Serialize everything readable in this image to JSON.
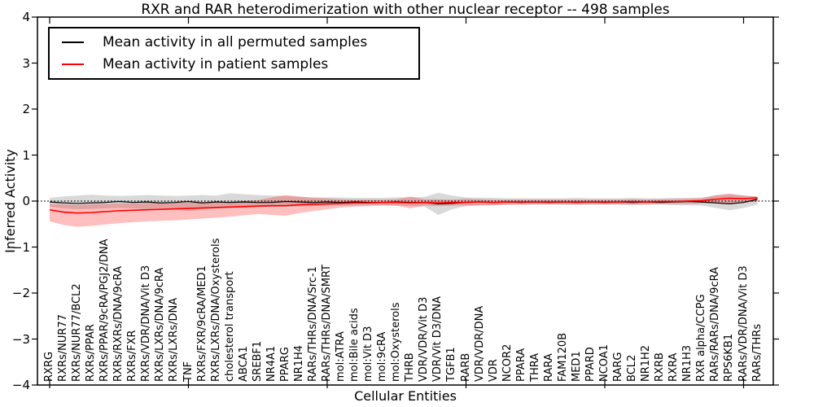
{
  "chart_data": {
    "type": "line",
    "title": "RXR and RAR heterodimerization with other nuclear receptor -- 498 samples",
    "xlabel": "Cellular Entities",
    "ylabel": "Inferred Activity",
    "ylim": [
      -4,
      4
    ],
    "grid": false,
    "legend_position": "upper left",
    "zero_line": {
      "style": "dotted",
      "color": "#000000"
    },
    "yticks": [
      {
        "value": 4,
        "label": "4"
      },
      {
        "value": 3,
        "label": "3"
      },
      {
        "value": 2,
        "label": "2"
      },
      {
        "value": 1,
        "label": "1"
      },
      {
        "value": 0,
        "label": "0"
      },
      {
        "value": -1,
        "label": "−1"
      },
      {
        "value": -2,
        "label": "−2"
      },
      {
        "value": -3,
        "label": "−3"
      },
      {
        "value": -4,
        "label": "−4"
      }
    ],
    "x_major_ticks": [
      0,
      10,
      20,
      30,
      40,
      50
    ],
    "categories": [
      "RXRG",
      "RXRs/NUR77",
      "RXRs/NUR77/BCL2",
      "RXRs/PPAR",
      "RXRs/PPAR/9cRA/PGJ2/DNA",
      "RXRs/RXRs/DNA/9cRA",
      "RXRs/FXR",
      "RXRs/VDR/DNA/Vit D3",
      "RXRs/LXRs/DNA/9cRA",
      "RXRs/LXRs/DNA",
      "TNF",
      "RXRs/FXR/9cRA/MED1",
      "RXRs/LXRs/DNA/Oxysterols",
      "cholesterol transport",
      "ABCA1",
      "SREBF1",
      "NR4A1",
      "PPARG",
      "NR1H4",
      "RARs/THRs/DNA/Src-1",
      "RARs/THRs/DNA/SMRT",
      "mol:ATRA",
      "mol:Bile acids",
      "mol:Vit D3",
      "mol:9cRA",
      "mol:Oxysterols",
      "THRB",
      "VDR/VDR/Vit D3",
      "VDR/Vit D3/DNA",
      "TGFB1",
      "RARB",
      "VDR/VDR/DNA",
      "VDR",
      "NCOR2",
      "PPARA",
      "THRA",
      "RARA",
      "FAM120B",
      "MED1",
      "PPARD",
      "NCOA1",
      "RARG",
      "BCL2",
      "NR1H2",
      "RXRB",
      "RXRA",
      "NR1H3",
      "RXR alpha/CCPG",
      "RARs/RARs/DNA/9cRA",
      "RPS6KB1",
      "RARs/VDR/DNA/Vit D3",
      "RARs/THRs"
    ],
    "series": [
      {
        "name": "Mean activity in all permuted samples",
        "color": "#000000",
        "line_width": 1.2,
        "band_color": "rgba(0,0,0,0.15)",
        "values": [
          -0.02,
          -0.04,
          -0.05,
          -0.04,
          -0.03,
          -0.01,
          -0.03,
          -0.02,
          -0.04,
          -0.03,
          -0.01,
          -0.04,
          -0.02,
          -0.03,
          -0.02,
          -0.03,
          -0.03,
          -0.01,
          -0.02,
          -0.03,
          -0.02,
          -0.03,
          -0.02,
          -0.03,
          -0.03,
          -0.02,
          -0.03,
          -0.03,
          -0.06,
          -0.05,
          -0.03,
          -0.02,
          -0.03,
          -0.02,
          -0.03,
          -0.02,
          -0.03,
          -0.02,
          -0.03,
          -0.02,
          -0.03,
          -0.02,
          -0.03,
          -0.02,
          -0.03,
          -0.02,
          -0.01,
          -0.02,
          -0.04,
          -0.06,
          -0.03,
          0.04
        ],
        "band_upper": [
          0.07,
          0.1,
          0.12,
          0.14,
          0.12,
          0.11,
          0.12,
          0.13,
          0.12,
          0.11,
          0.12,
          0.13,
          0.12,
          0.17,
          0.15,
          0.13,
          0.12,
          0.11,
          0.09,
          0.08,
          0.08,
          0.08,
          0.07,
          0.07,
          0.07,
          0.08,
          0.08,
          0.09,
          0.18,
          0.12,
          0.08,
          0.07,
          0.07,
          0.06,
          0.06,
          0.06,
          0.06,
          0.06,
          0.07,
          0.06,
          0.06,
          0.06,
          0.07,
          0.06,
          0.06,
          0.07,
          0.07,
          0.08,
          0.12,
          0.15,
          0.12,
          0.09
        ],
        "band_lower": [
          -0.12,
          -0.16,
          -0.18,
          -0.17,
          -0.16,
          -0.15,
          -0.16,
          -0.17,
          -0.16,
          -0.18,
          -0.22,
          -0.18,
          -0.16,
          -0.15,
          -0.14,
          -0.13,
          -0.13,
          -0.12,
          -0.12,
          -0.11,
          -0.1,
          -0.1,
          -0.1,
          -0.09,
          -0.09,
          -0.1,
          -0.11,
          -0.12,
          -0.3,
          -0.18,
          -0.11,
          -0.1,
          -0.09,
          -0.08,
          -0.08,
          -0.08,
          -0.08,
          -0.08,
          -0.09,
          -0.08,
          -0.08,
          -0.08,
          -0.09,
          -0.08,
          -0.08,
          -0.09,
          -0.09,
          -0.1,
          -0.15,
          -0.2,
          -0.15,
          -0.08
        ]
      },
      {
        "name": "Mean activity in patient samples",
        "color": "#ff0000",
        "line_width": 1.6,
        "band_color": "rgba(255,0,0,0.25)",
        "values": [
          -0.19,
          -0.24,
          -0.26,
          -0.25,
          -0.23,
          -0.21,
          -0.2,
          -0.19,
          -0.18,
          -0.17,
          -0.16,
          -0.15,
          -0.14,
          -0.13,
          -0.12,
          -0.11,
          -0.1,
          -0.1,
          -0.08,
          -0.07,
          -0.06,
          -0.05,
          -0.04,
          -0.04,
          -0.03,
          -0.03,
          -0.04,
          -0.03,
          -0.04,
          -0.03,
          -0.03,
          -0.02,
          -0.03,
          -0.02,
          -0.02,
          -0.02,
          -0.02,
          -0.02,
          -0.02,
          -0.02,
          -0.02,
          -0.02,
          -0.01,
          -0.02,
          -0.01,
          -0.01,
          0.0,
          0.01,
          0.04,
          0.06,
          0.05,
          0.07
        ],
        "band_upper": [
          -0.06,
          -0.07,
          -0.08,
          -0.07,
          -0.06,
          -0.05,
          -0.05,
          -0.04,
          -0.04,
          -0.03,
          -0.03,
          -0.02,
          -0.02,
          -0.01,
          0.0,
          0.02,
          0.08,
          0.13,
          0.1,
          0.07,
          0.06,
          0.04,
          0.03,
          0.03,
          0.03,
          0.04,
          0.1,
          0.04,
          0.04,
          0.03,
          0.05,
          0.04,
          0.03,
          0.03,
          0.03,
          0.03,
          0.03,
          0.03,
          0.03,
          0.03,
          0.03,
          0.03,
          0.04,
          0.03,
          0.04,
          0.04,
          0.05,
          0.06,
          0.13,
          0.16,
          0.12,
          0.1
        ],
        "band_lower": [
          -0.44,
          -0.52,
          -0.56,
          -0.54,
          -0.51,
          -0.48,
          -0.46,
          -0.44,
          -0.43,
          -0.42,
          -0.4,
          -0.38,
          -0.36,
          -0.34,
          -0.31,
          -0.28,
          -0.3,
          -0.32,
          -0.26,
          -0.22,
          -0.18,
          -0.14,
          -0.12,
          -0.11,
          -0.1,
          -0.1,
          -0.16,
          -0.1,
          -0.11,
          -0.1,
          -0.1,
          -0.09,
          -0.09,
          -0.08,
          -0.08,
          -0.07,
          -0.07,
          -0.07,
          -0.07,
          -0.07,
          -0.07,
          -0.07,
          -0.07,
          -0.07,
          -0.06,
          -0.06,
          -0.06,
          -0.05,
          -0.04,
          -0.05,
          -0.04,
          -0.01
        ]
      }
    ]
  }
}
